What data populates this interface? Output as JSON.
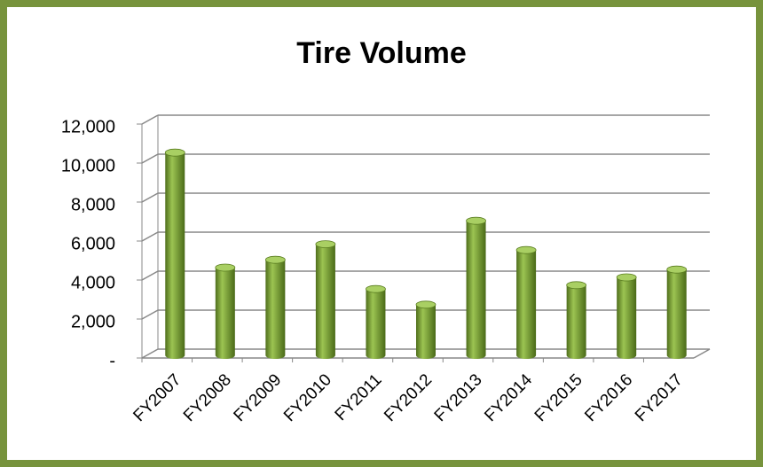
{
  "chart_data": {
    "type": "bar",
    "title": "Tire Volume",
    "categories": [
      "FY2007",
      "FY2008",
      "FY2009",
      "FY2010",
      "FY2011",
      "FY2012",
      "FY2013",
      "FY2014",
      "FY2015",
      "FY2016",
      "FY2017"
    ],
    "values": [
      10400,
      4500,
      4900,
      5700,
      3400,
      2600,
      6900,
      5400,
      3600,
      4000,
      4400
    ],
    "color": "#77a032",
    "ylim": [
      0,
      12000
    ],
    "yticks": [
      {
        "value": 0,
        "label": "-"
      },
      {
        "value": 2000,
        "label": "2,000"
      },
      {
        "value": 4000,
        "label": "4,000"
      },
      {
        "value": 6000,
        "label": "6,000"
      },
      {
        "value": 8000,
        "label": "8,000"
      },
      {
        "value": 10000,
        "label": "10,000"
      },
      {
        "value": 12000,
        "label": "12,000"
      }
    ],
    "grid": true
  }
}
